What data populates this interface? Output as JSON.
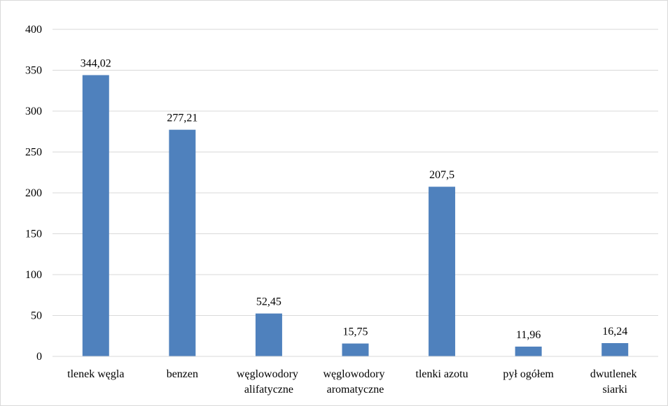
{
  "chart_data": {
    "type": "bar",
    "categories": [
      "tlenek węgla",
      "benzen",
      "węglowodory alifatyczne",
      "węglowodory aromatyczne",
      "tlenki azotu",
      "pył ogółem",
      "dwutlenek siarki"
    ],
    "values": [
      344.02,
      277.21,
      52.45,
      15.75,
      207.5,
      11.96,
      16.24
    ],
    "value_labels": [
      "344,02",
      "277,21",
      "52,45",
      "15,75",
      "207,5",
      "11,96",
      "16,24"
    ],
    "color": "#4f81bd",
    "ylim": [
      0,
      400
    ],
    "yticks": [
      0,
      50,
      100,
      150,
      200,
      250,
      300,
      350,
      400
    ],
    "grid": true
  }
}
